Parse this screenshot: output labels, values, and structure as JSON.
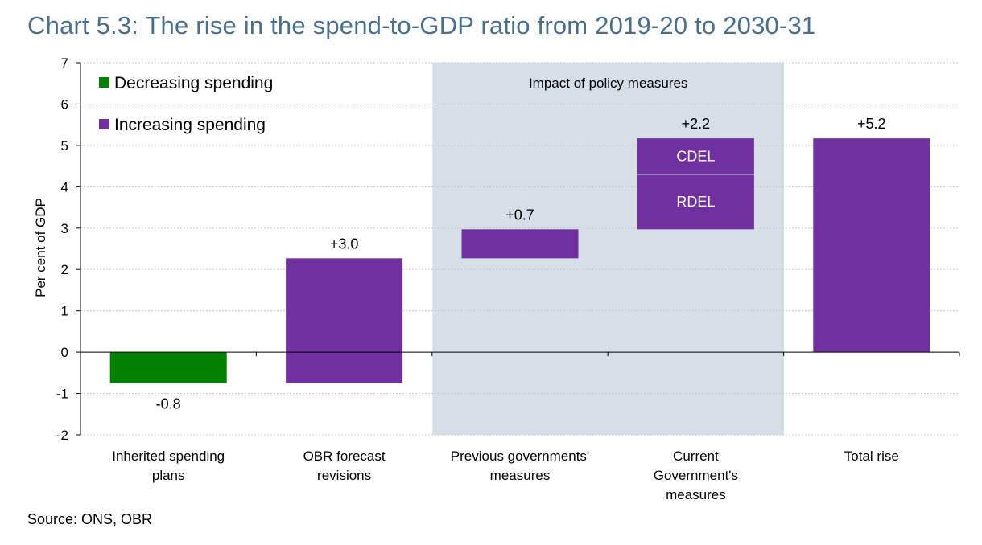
{
  "title": "Chart 5.3: The rise in the spend-to-GDP ratio from 2019-20 to 2030-31",
  "source": "Source: ONS, OBR",
  "colors": {
    "decrease": "#008000",
    "increase": "#7030a0",
    "shade": "#d6dfe8",
    "grid": "#c8c8c8",
    "axis": "#000000"
  },
  "chart_data": {
    "type": "bar",
    "subtype": "waterfall",
    "ylabel": "Per cent of GDP",
    "ylim": [
      -2,
      7
    ],
    "yticks": [
      -2,
      -1,
      0,
      1,
      2,
      3,
      4,
      5,
      6,
      7
    ],
    "grid": true,
    "legend_position": "top-left",
    "legend": [
      {
        "label": "Decreasing spending",
        "color": "#008000"
      },
      {
        "label": "Increasing spending",
        "color": "#7030a0"
      }
    ],
    "shaded_region": {
      "label": "Impact of policy measures",
      "from_category": 2,
      "to_category": 3
    },
    "categories": [
      [
        "Inherited spending",
        "plans"
      ],
      [
        "OBR forecast",
        "revisions"
      ],
      [
        "Previous governments'",
        "measures"
      ],
      [
        "Current",
        "Government's",
        "measures"
      ],
      [
        "Total rise"
      ]
    ],
    "bars": [
      {
        "base": 0,
        "top": -0.75,
        "label": "-0.8",
        "kind": "decrease"
      },
      {
        "base": -0.75,
        "top": 2.27,
        "label": "+3.0",
        "kind": "increase"
      },
      {
        "base": 2.27,
        "top": 2.97,
        "label": "+0.7",
        "kind": "increase"
      },
      {
        "base": 2.97,
        "top": 5.17,
        "label": "+2.2",
        "kind": "increase",
        "segments": [
          {
            "name": "RDEL",
            "base": 2.97,
            "top": 4.3
          },
          {
            "name": "CDEL",
            "base": 4.3,
            "top": 5.17
          }
        ]
      },
      {
        "base": 0,
        "top": 5.17,
        "label": "+5.2",
        "kind": "increase"
      }
    ]
  }
}
